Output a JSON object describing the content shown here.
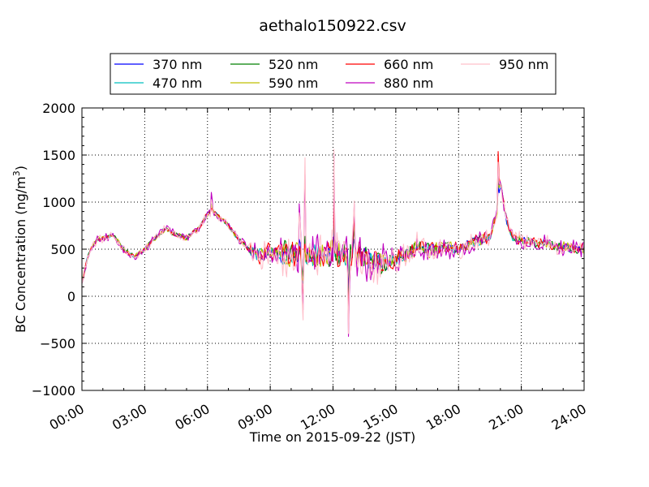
{
  "chart_data": {
    "type": "line",
    "title": "aethalo150922.csv",
    "xlabel": "Time on 2015-09-22 (JST)",
    "ylabel": "BC Concentration (ng/m³)",
    "ylabel_main": "BC Concentration (ng/m",
    "ylabel_sup": "3",
    "ylabel_end": ")",
    "xlim_hours": [
      0,
      24
    ],
    "ylim": [
      -1000,
      2000
    ],
    "x_ticks": [
      "00:00",
      "03:00",
      "06:00",
      "09:00",
      "12:00",
      "15:00",
      "18:00",
      "21:00",
      "24:00"
    ],
    "y_ticks": [
      "−1000",
      "−500",
      "0",
      "500",
      "1000",
      "1500",
      "2000"
    ],
    "grid": true,
    "legend_position": "top",
    "series": [
      {
        "name": "370 nm",
        "color": "#0000ff",
        "noise": 0.45,
        "seed": 11
      },
      {
        "name": "470 nm",
        "color": "#00bfbf",
        "noise": 0.55,
        "seed": 23
      },
      {
        "name": "520 nm",
        "color": "#008000",
        "noise": 0.65,
        "seed": 37
      },
      {
        "name": "590 nm",
        "color": "#bfbf00",
        "noise": 0.7,
        "seed": 41
      },
      {
        "name": "660 nm",
        "color": "#ff0000",
        "noise": 0.75,
        "seed": 53
      },
      {
        "name": "880 nm",
        "color": "#bf00bf",
        "noise": 1.15,
        "seed": 67
      },
      {
        "name": "950 nm",
        "color": "#ffc0cb",
        "noise": 1.25,
        "seed": 79
      }
    ],
    "baseline_hours": [
      0,
      0.3,
      0.7,
      1.5,
      2.0,
      2.5,
      3.0,
      3.5,
      4.0,
      4.5,
      5.0,
      5.5,
      6.0,
      6.3,
      7.0,
      7.5,
      8.0,
      8.5,
      9.0,
      9.5,
      10.0,
      10.5,
      11.0,
      11.5,
      12.0,
      12.5,
      13.0,
      13.5,
      14.0,
      14.5,
      15.0,
      15.5,
      16.0,
      16.5,
      17.0,
      17.5,
      18.0,
      18.5,
      19.0,
      19.5,
      19.8,
      20.0,
      20.3,
      20.6,
      21.0,
      22.0,
      23.0,
      24.0
    ],
    "baseline_values": [
      150,
      450,
      600,
      650,
      500,
      420,
      500,
      620,
      720,
      650,
      620,
      700,
      870,
      900,
      750,
      600,
      500,
      430,
      480,
      450,
      450,
      430,
      430,
      430,
      450,
      420,
      450,
      420,
      380,
      330,
      400,
      450,
      530,
      500,
      500,
      520,
      500,
      560,
      600,
      620,
      850,
      1200,
      800,
      620,
      600,
      560,
      520,
      500
    ],
    "spikes": [
      {
        "hours": 6.2,
        "values": [
          1100,
          1050,
          1020,
          1000,
          960,
          1200,
          1100
        ]
      },
      {
        "hours": 10.4,
        "values": [
          650,
          500,
          600,
          500,
          600,
          1300,
          1000
        ]
      },
      {
        "hours": 10.55,
        "values": [
          100,
          0,
          100,
          0,
          -300,
          -500,
          -800
        ]
      },
      {
        "hours": 10.65,
        "values": [
          520,
          600,
          700,
          560,
          600,
          1500,
          1800
        ]
      },
      {
        "hours": 12.05,
        "values": [
          700,
          900,
          1000,
          1050,
          1100,
          1600,
          1650
        ]
      },
      {
        "hours": 12.75,
        "values": [
          -100,
          -300,
          -350,
          -400,
          -450,
          -670,
          -650
        ]
      },
      {
        "hours": 13.0,
        "values": [
          650,
          800,
          900,
          950,
          1000,
          1280,
          1350
        ]
      },
      {
        "hours": 19.9,
        "values": [
          1200,
          1300,
          1400,
          1450,
          1630,
          1480,
          1500
        ]
      }
    ]
  }
}
